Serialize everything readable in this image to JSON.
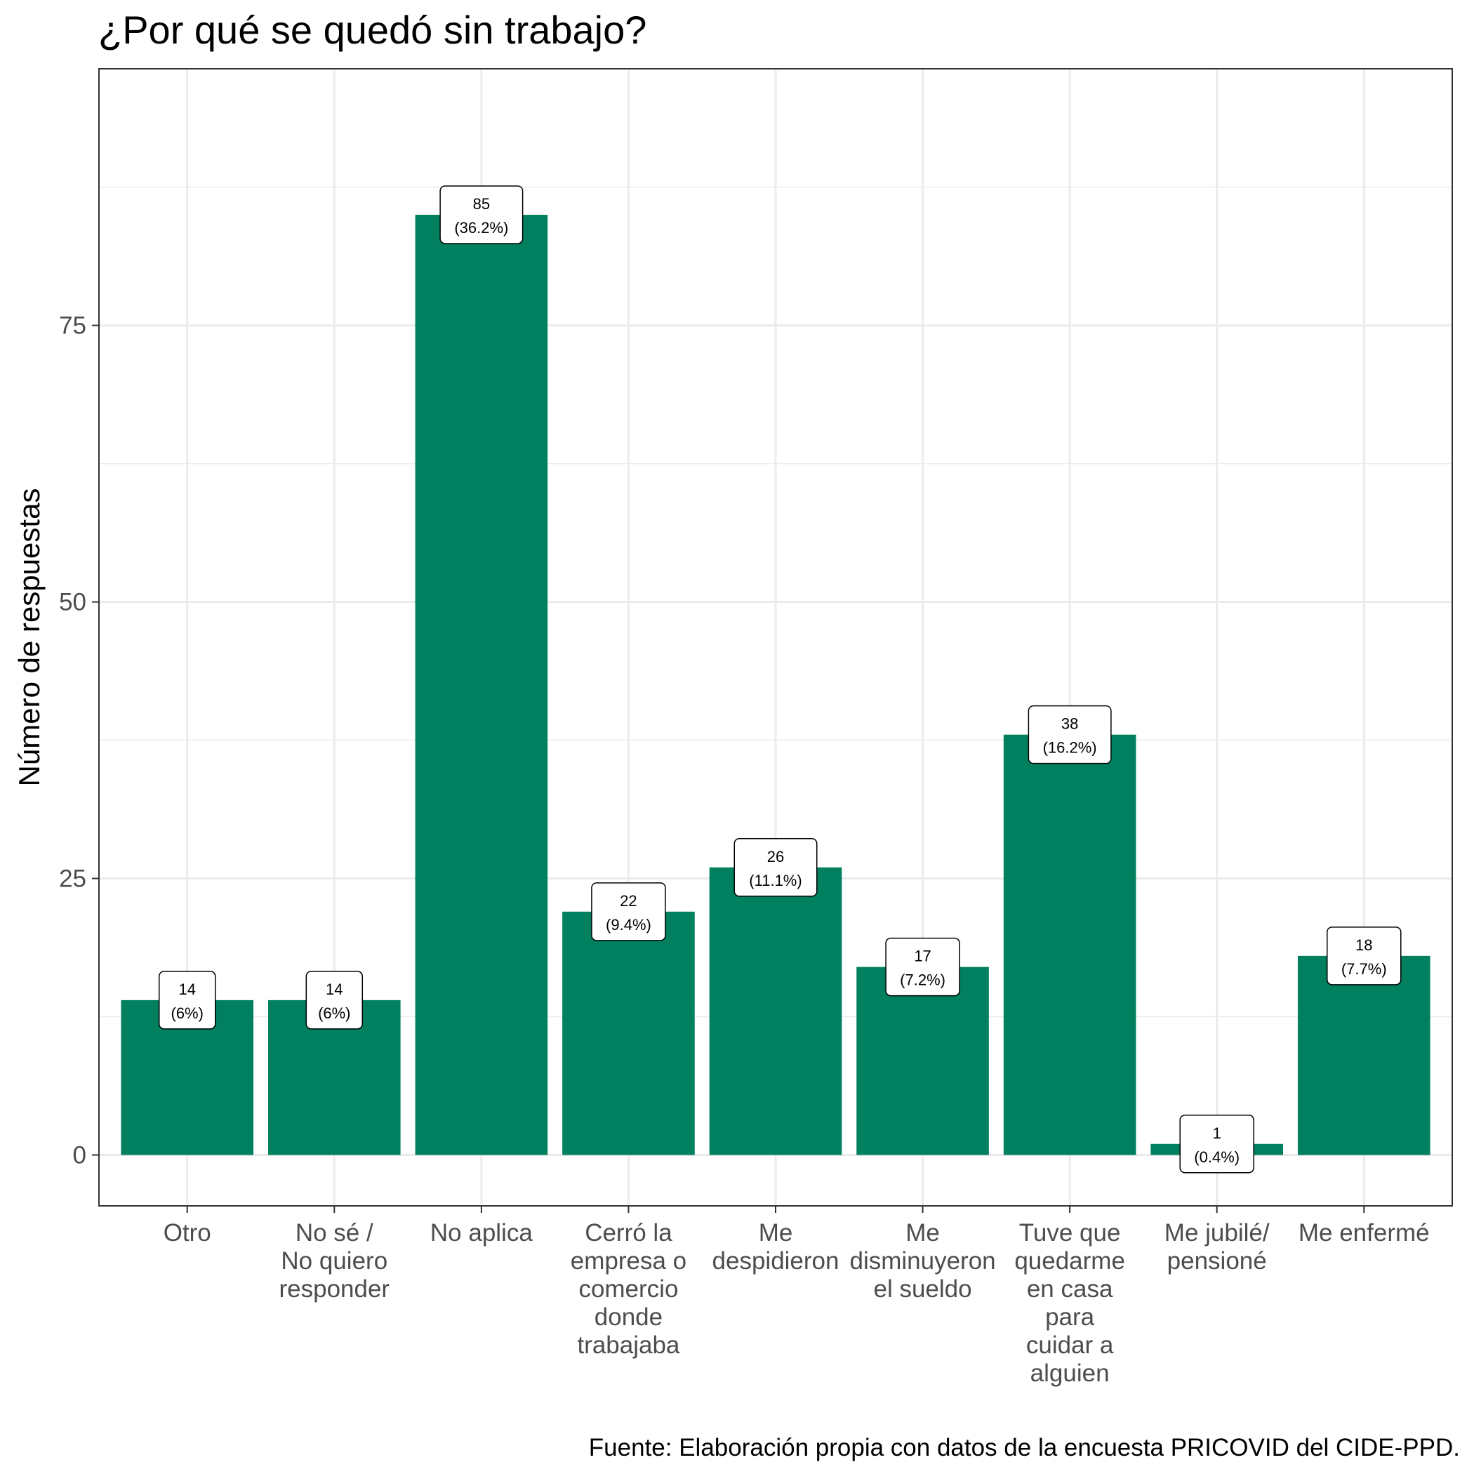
{
  "chart_data": {
    "type": "bar",
    "title": "¿Por qué se quedó sin trabajo?",
    "xlabel": "",
    "ylabel": "Número de respuestas",
    "caption": "Fuente: Elaboración propia con datos de la encuesta PRICOVID del CIDE-PPD.",
    "categories": [
      "Otro",
      "No sé / No quiero responder",
      "No aplica",
      "Cerró la empresa o comercio donde trabajaba",
      "Me despidieron",
      "Me disminuyeron el sueldo",
      "Tuve que quedarme en casa para cuidar a alguien",
      "Me jubilé/ pensioné",
      "Me enfermé"
    ],
    "category_lines": [
      [
        "Otro"
      ],
      [
        "No sé /",
        "No quiero",
        "responder"
      ],
      [
        "No aplica"
      ],
      [
        "Cerró la",
        "empresa o",
        "comercio",
        "donde",
        "trabajaba"
      ],
      [
        "Me",
        "despidieron"
      ],
      [
        "Me",
        "disminuyeron",
        "el sueldo"
      ],
      [
        "Tuve que",
        "quedarme",
        "en casa",
        "para",
        "cuidar a",
        "alguien"
      ],
      [
        "Me jubilé/",
        "pensioné"
      ],
      [
        "Me enfermé"
      ]
    ],
    "values": [
      14,
      14,
      85,
      22,
      26,
      17,
      38,
      1,
      18
    ],
    "percent_labels": [
      "(6%)",
      "(6%)",
      "(36.2%)",
      "(9.4%)",
      "(11.1%)",
      "(7.2%)",
      "(16.2%)",
      "(0.4%)",
      "(7.7%)"
    ],
    "yticks": [
      0,
      25,
      50,
      75
    ],
    "ylim": [
      -4.6,
      98.2
    ],
    "grid": true,
    "bar_color": "#00805f"
  }
}
